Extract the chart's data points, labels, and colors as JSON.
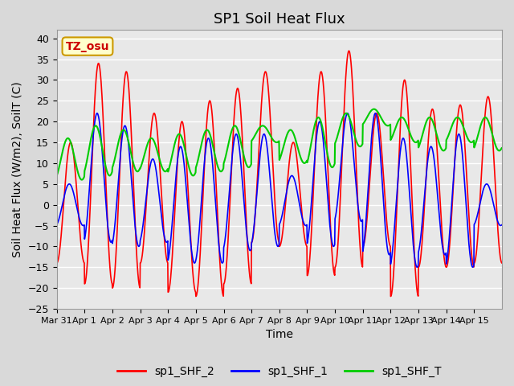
{
  "title": "SP1 Soil Heat Flux",
  "xlabel": "Time",
  "ylabel": "Soil Heat Flux (W/m2), SoilT (C)",
  "ylim": [
    -25,
    42
  ],
  "yticks": [
    -25,
    -20,
    -15,
    -10,
    -5,
    0,
    5,
    10,
    15,
    20,
    25,
    30,
    35,
    40
  ],
  "xtick_labels": [
    "Mar 31",
    "Apr 1",
    "Apr 2",
    "Apr 3",
    "Apr 4",
    "Apr 5",
    "Apr 6",
    "Apr 7",
    "Apr 8",
    "Apr 9",
    "Apr 10",
    "Apr 11",
    "Apr 12",
    "Apr 13",
    "Apr 14",
    "Apr 15"
  ],
  "annotation_text": "TZ_osu",
  "annotation_color": "#cc0000",
  "annotation_bg": "#ffffcc",
  "annotation_border": "#cc9900",
  "color_shf2": "#ff0000",
  "color_shf1": "#0000ff",
  "color_shft": "#00cc00",
  "legend_labels": [
    "sp1_SHF_2",
    "sp1_SHF_1",
    "sp1_SHF_T"
  ],
  "title_fontsize": 13,
  "axis_fontsize": 10,
  "tick_fontsize": 9,
  "amp2_days": [
    15,
    34,
    32,
    22,
    20,
    25,
    28,
    32,
    15,
    32,
    37,
    22,
    30,
    23,
    24,
    26
  ],
  "min2_days": [
    -14,
    -19,
    -20,
    -14,
    -21,
    -22,
    -19,
    -9,
    -10,
    -17,
    -15,
    -10,
    -22,
    -15,
    -15,
    -14
  ],
  "amp1_days": [
    5,
    22,
    19,
    11,
    14,
    16,
    17,
    17,
    7,
    20,
    22,
    22,
    16,
    14,
    17,
    5
  ],
  "min1_days": [
    -5,
    -9,
    -10,
    -9,
    -14,
    -14,
    -11,
    -10,
    -5,
    -10,
    -4,
    -12,
    -15,
    -12,
    -15,
    -5
  ],
  "base_T": [
    11,
    13,
    13,
    12,
    12,
    13,
    14,
    17,
    14,
    15,
    18,
    21,
    18,
    17,
    18,
    17
  ],
  "amp_T": [
    5,
    6,
    5,
    4,
    5,
    5,
    5,
    2,
    4,
    6,
    4,
    2,
    3,
    4,
    3,
    4
  ]
}
